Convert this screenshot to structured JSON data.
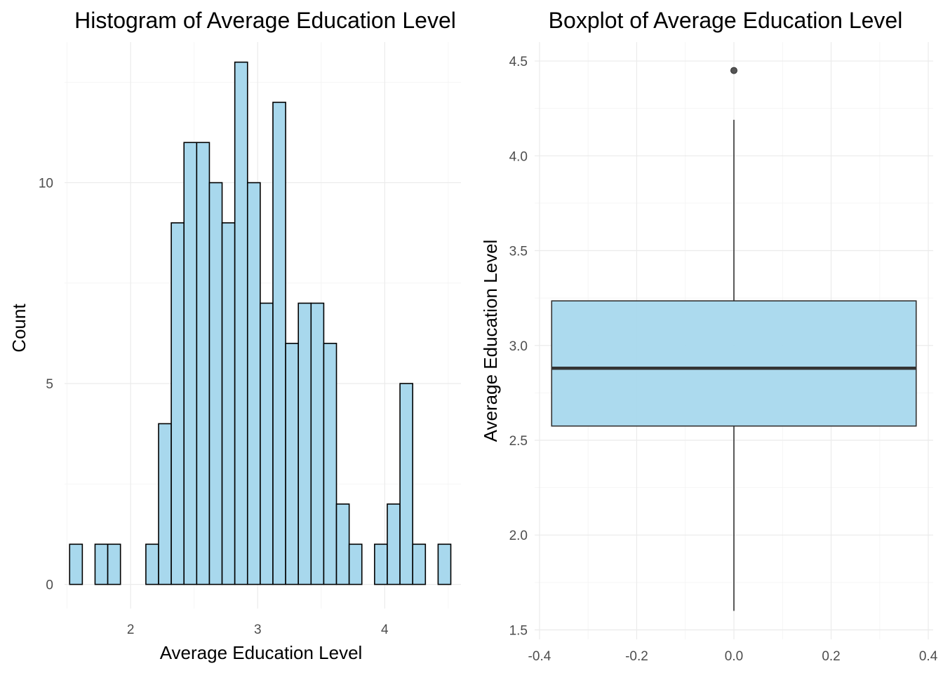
{
  "chart_data": [
    {
      "type": "bar",
      "title": "Histogram of Average Education Level",
      "xlabel": "Average Education Level",
      "ylabel": "Count",
      "xlim": [
        1.48,
        4.6
      ],
      "ylim": [
        -0.6,
        13.5
      ],
      "x_ticks": [
        2,
        3,
        4
      ],
      "y_ticks": [
        0,
        5,
        10
      ],
      "bin_width": 0.1,
      "bin_starts": [
        1.52,
        1.62,
        1.72,
        1.82,
        1.92,
        2.02,
        2.12,
        2.22,
        2.32,
        2.42,
        2.52,
        2.62,
        2.72,
        2.82,
        2.92,
        3.02,
        3.12,
        3.22,
        3.32,
        3.42,
        3.52,
        3.62,
        3.72,
        3.82,
        3.92,
        4.02,
        4.12,
        4.22,
        4.32,
        4.42
      ],
      "counts": [
        1,
        0,
        1,
        1,
        0,
        0,
        1,
        4,
        9,
        11,
        11,
        10,
        9,
        13,
        10,
        7,
        12,
        6,
        7,
        7,
        6,
        2,
        1,
        0,
        1,
        2,
        5,
        1,
        0,
        1
      ],
      "fill": "#a8d8ed",
      "edge": "#000000",
      "grid": true
    },
    {
      "type": "boxplot",
      "title": "Boxplot of Average Education Level",
      "xlabel": "",
      "ylabel": "Average Education Level",
      "xlim": [
        -0.41,
        0.41
      ],
      "ylim": [
        1.45,
        4.6
      ],
      "x_ticks": [
        "-0.4",
        "-0.2",
        "0.0",
        "0.2",
        "0.4"
      ],
      "y_ticks": [
        "1.5",
        "2.0",
        "2.5",
        "3.0",
        "3.5",
        "4.0",
        "4.5"
      ],
      "box": {
        "x_center": 0,
        "half_width": 0.375,
        "q1": 2.575,
        "median": 2.88,
        "q3": 3.235,
        "whisker_low": 1.6,
        "whisker_high": 4.19
      },
      "outliers": [
        4.45
      ],
      "fill": "#a8d8ed",
      "edge": "#333333",
      "grid": true
    }
  ]
}
